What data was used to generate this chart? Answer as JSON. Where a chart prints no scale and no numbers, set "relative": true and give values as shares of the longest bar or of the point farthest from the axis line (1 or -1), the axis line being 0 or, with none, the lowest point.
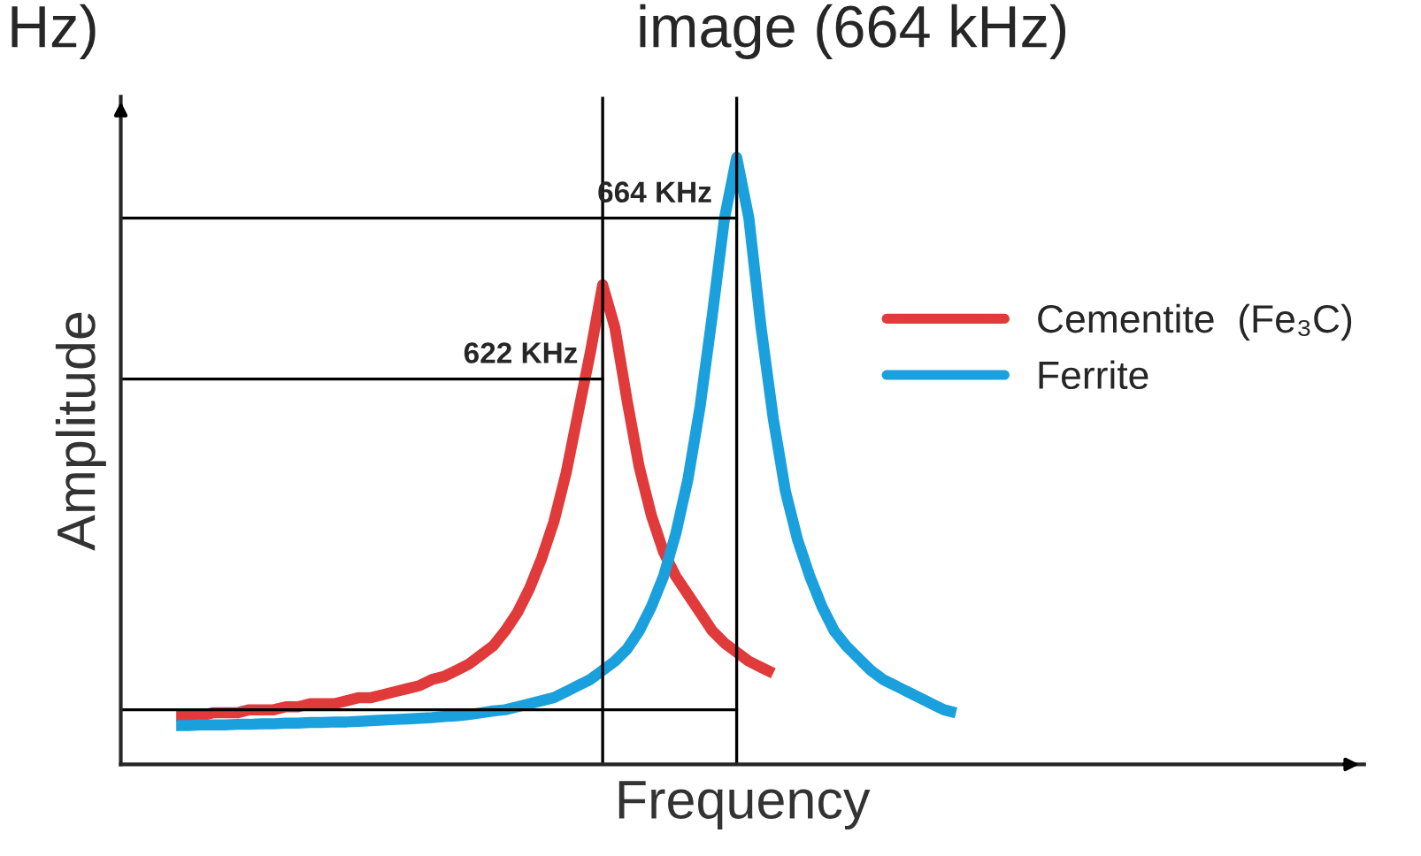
{
  "chart_data": {
    "type": "line",
    "title": "image (664 kHz)",
    "xlabel": "Frequency",
    "ylabel": "Amplitude",
    "relative": true,
    "legend": "right",
    "annotations": [
      "Hz)"
    ],
    "categories": [
      null,
      null,
      null,
      null,
      null,
      null,
      null,
      null,
      null,
      null,
      null,
      null,
      null,
      null,
      null,
      null,
      null,
      null,
      null,
      null,
      null,
      null,
      null,
      null,
      null,
      null,
      null,
      null,
      null,
      null,
      null,
      null,
      null,
      null,
      null,
      null,
      null,
      null,
      null,
      null,
      null,
      null,
      null,
      null,
      null,
      null,
      null,
      null,
      null,
      null,
      null,
      null,
      null,
      null,
      null,
      null,
      null,
      null,
      null,
      null,
      null,
      null,
      null,
      null,
      null
    ],
    "series": [
      {
        "name": "Cementite  (Fe₃C)",
        "color": "#e03a3a",
        "values": [
          0.08,
          0.08,
          0.08,
          0.085,
          0.085,
          0.085,
          0.09,
          0.09,
          0.09,
          0.095,
          0.095,
          0.1,
          0.1,
          0.1,
          0.105,
          0.11,
          0.11,
          0.115,
          0.12,
          0.125,
          0.13,
          0.14,
          0.145,
          0.155,
          0.165,
          0.18,
          0.195,
          0.22,
          0.25,
          0.29,
          0.34,
          0.4,
          0.48,
          0.58,
          0.68,
          0.79,
          0.72,
          0.6,
          0.49,
          0.41,
          0.35,
          0.31,
          0.28,
          0.25,
          0.22,
          0.2,
          0.185,
          0.17,
          0.16,
          0.15,
          null,
          null,
          null,
          null,
          null,
          null,
          null,
          null,
          null,
          null,
          null,
          null,
          null,
          null,
          null
        ]
      },
      {
        "name": "Ferrite",
        "color": "#1aa0dc",
        "values": [
          0.064,
          0.064,
          0.065,
          0.065,
          0.065,
          0.066,
          0.066,
          0.067,
          0.067,
          0.068,
          0.068,
          0.069,
          0.069,
          0.07,
          0.07,
          0.071,
          0.072,
          0.073,
          0.074,
          0.075,
          0.076,
          0.077,
          0.079,
          0.08,
          0.082,
          0.085,
          0.088,
          0.09,
          0.095,
          0.1,
          0.105,
          0.11,
          0.12,
          0.13,
          0.14,
          0.155,
          0.17,
          0.19,
          0.22,
          0.26,
          0.31,
          0.38,
          0.47,
          0.59,
          0.74,
          0.9,
          1,
          0.9,
          0.72,
          0.57,
          0.45,
          0.37,
          0.31,
          0.26,
          0.22,
          0.195,
          0.175,
          0.155,
          0.14,
          0.13,
          0.12,
          0.11,
          0.1,
          0.09,
          0.085
        ]
      }
    ],
    "ref_lines": [
      {
        "axis": "y",
        "value": 0.9,
        "label": "664 KHz",
        "color": "#000000"
      },
      {
        "axis": "y",
        "value": 0.635,
        "label": "622 KHz",
        "color": "#000000"
      },
      {
        "axis": "y",
        "value": 0.09,
        "color": "#000000"
      }
    ]
  }
}
